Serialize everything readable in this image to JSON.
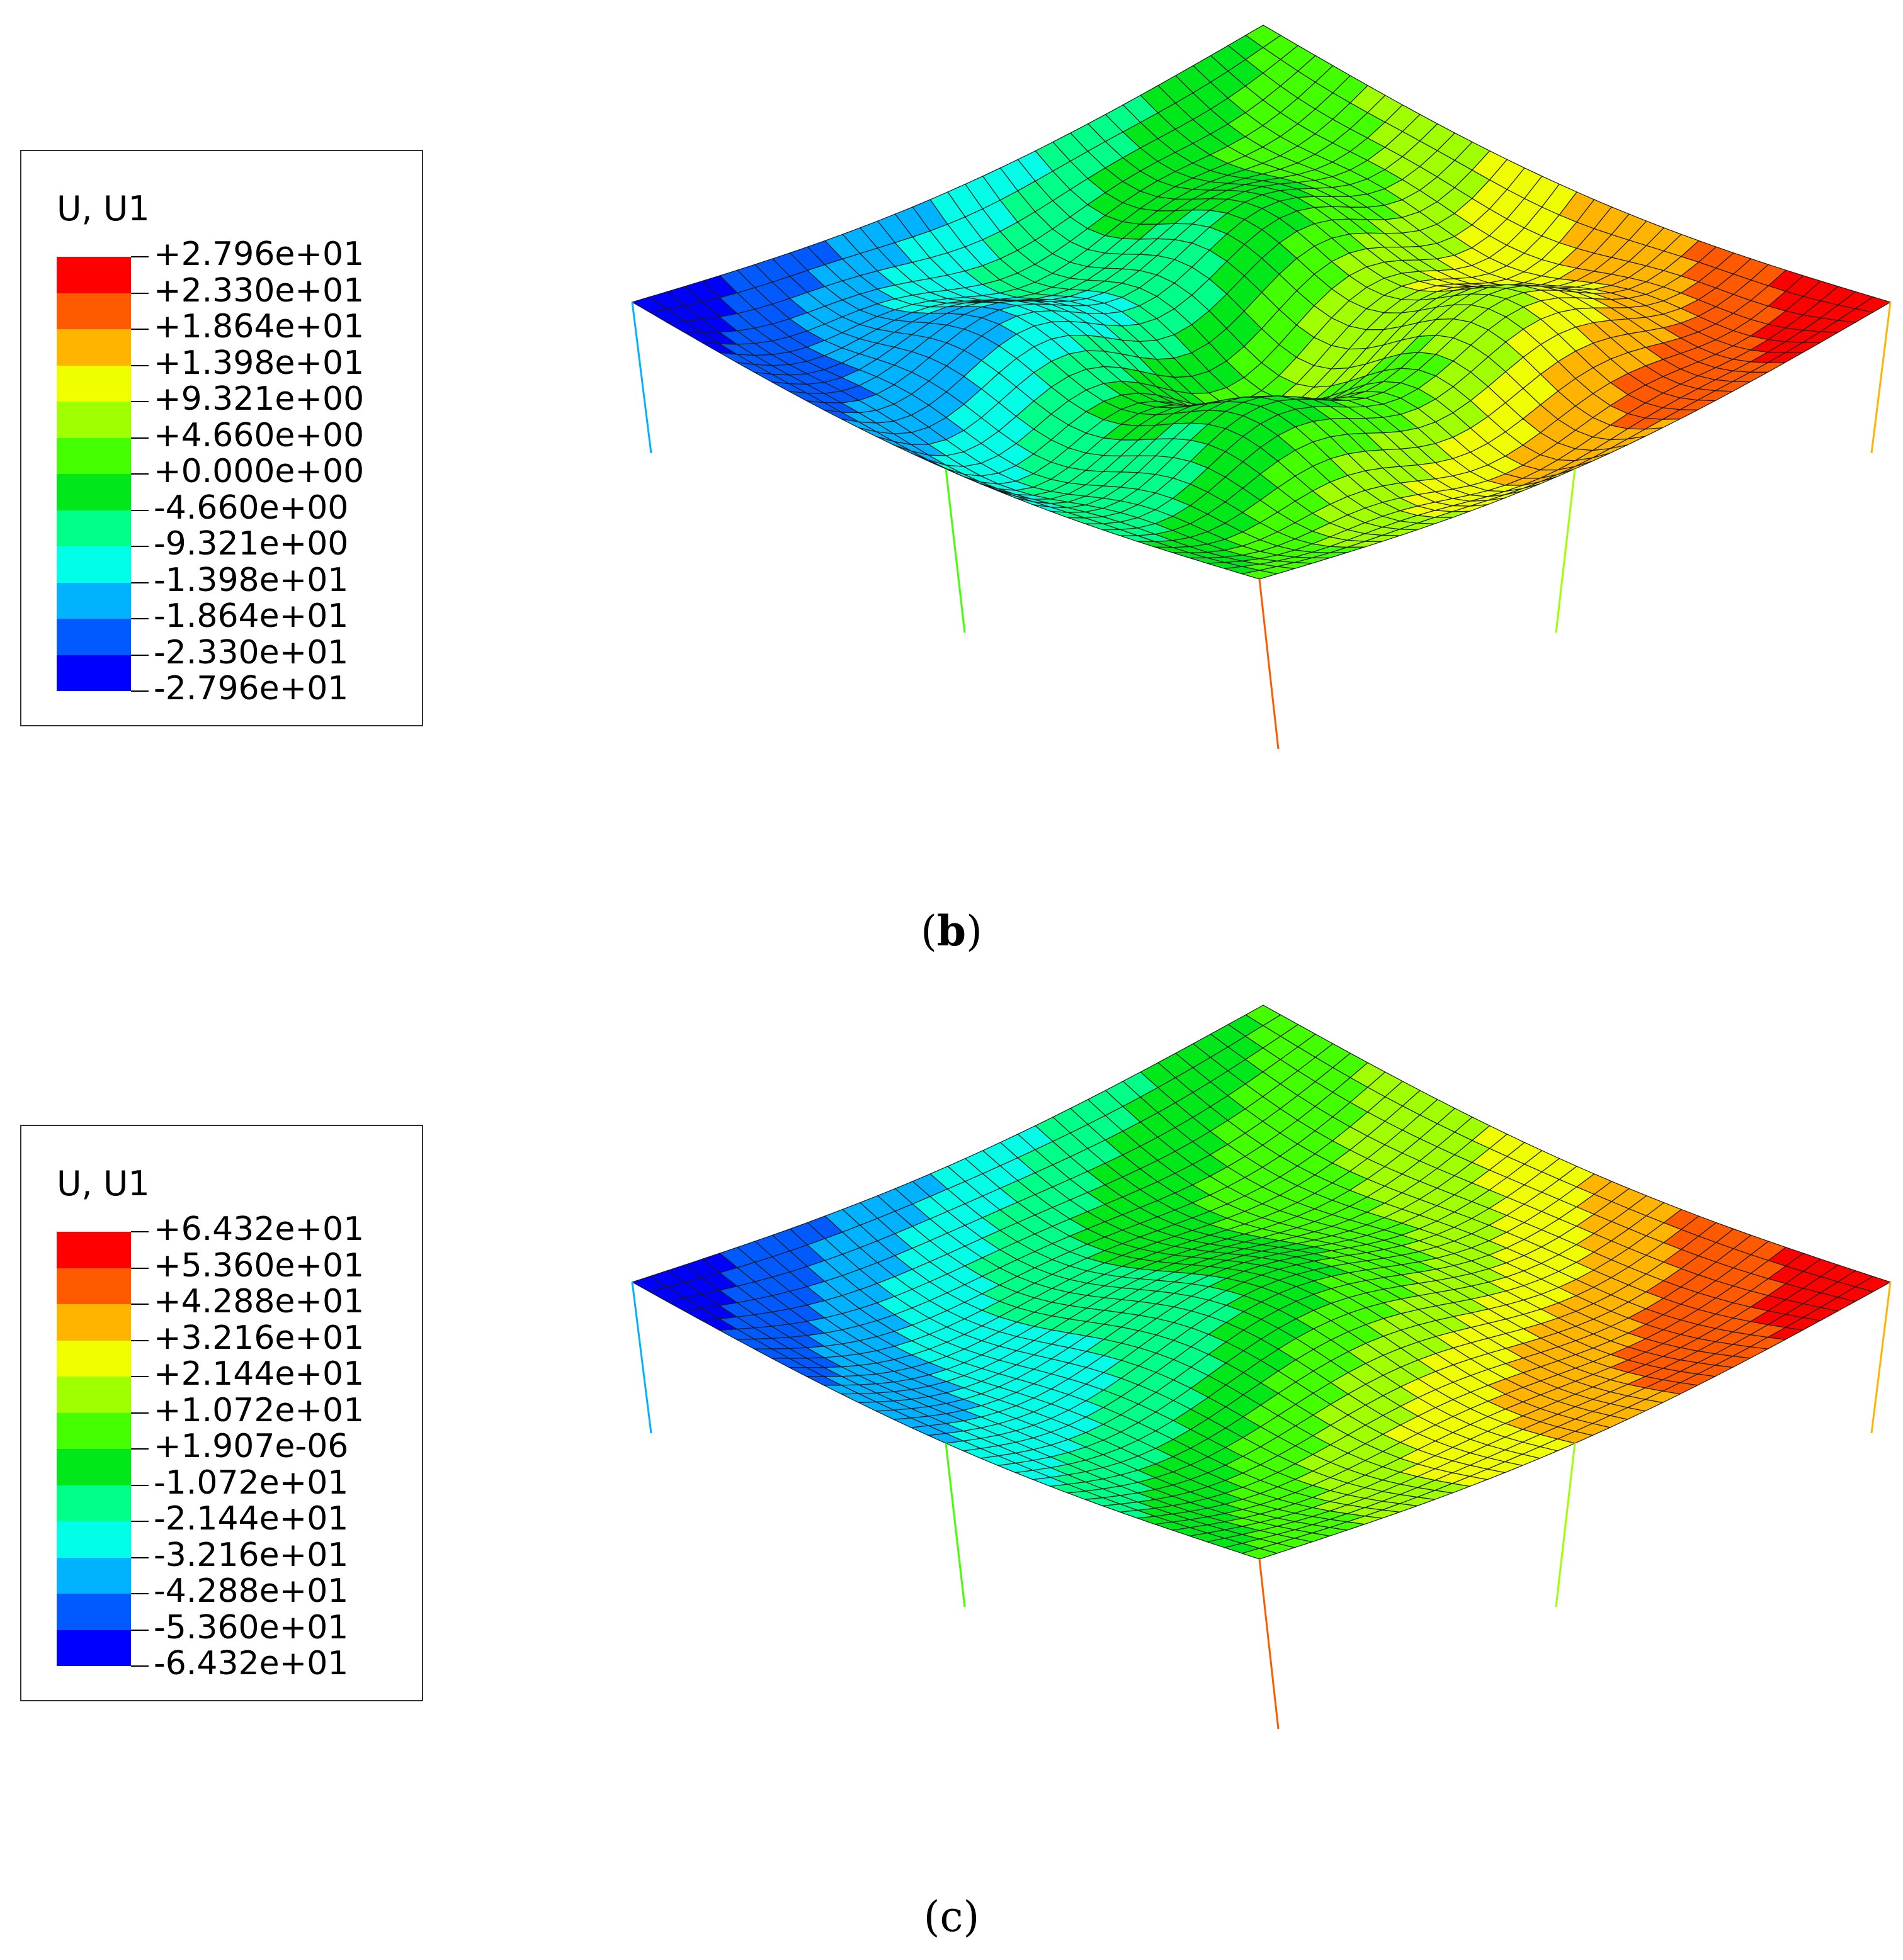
{
  "panels": [
    {
      "id": "b",
      "caption_open": "(",
      "caption_letter": "b",
      "caption_close": ")",
      "caption_bold": true,
      "legend": {
        "title": "U, U1",
        "labels": [
          "+2.796e+01",
          "+2.330e+01",
          "+1.864e+01",
          "+1.398e+01",
          "+9.321e+00",
          "+4.660e+00",
          "+0.000e+00",
          "-4.660e+00",
          "-9.321e+00",
          "-1.398e+01",
          "-1.864e+01",
          "-2.330e+01",
          "-2.796e+01"
        ],
        "colors": [
          "#ff0000",
          "#ff5a00",
          "#ffb400",
          "#f0ff00",
          "#a0ff00",
          "#44ff00",
          "#00e81a",
          "#00ff88",
          "#00ffe6",
          "#00b2ff",
          "#005aff",
          "#0000ff"
        ]
      },
      "surface": {
        "peak_lobes": 5,
        "depth": 1.0
      }
    },
    {
      "id": "c",
      "caption_open": "(",
      "caption_letter": "c",
      "caption_close": ")",
      "caption_bold": false,
      "legend": {
        "title": "U, U1",
        "labels": [
          "+6.432e+01",
          "+5.360e+01",
          "+4.288e+01",
          "+3.216e+01",
          "+2.144e+01",
          "+1.072e+01",
          "+1.907e-06",
          "-1.072e+01",
          "-2.144e+01",
          "-3.216e+01",
          "-4.288e+01",
          "-5.360e+01",
          "-6.432e+01"
        ],
        "colors": [
          "#ff0000",
          "#ff5a00",
          "#ffb400",
          "#f0ff00",
          "#a0ff00",
          "#44ff00",
          "#00e81a",
          "#00ff88",
          "#00ffe6",
          "#00b2ff",
          "#005aff",
          "#0000ff"
        ]
      },
      "surface": {
        "peak_lobes": 3,
        "depth": 0.8
      }
    }
  ]
}
